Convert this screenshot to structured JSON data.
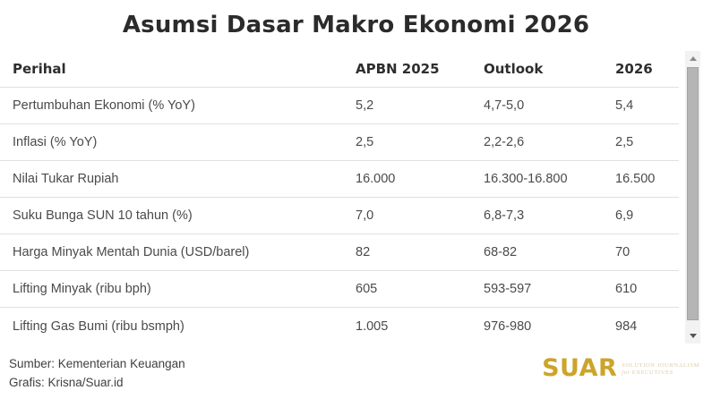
{
  "title": "Asumsi Dasar Makro Ekonomi 2026",
  "table": {
    "columns": [
      "Perihal",
      "APBN 2025",
      "Outlook",
      "2026"
    ],
    "rows": [
      [
        "Pertumbuhan Ekonomi (% YoY)",
        "5,2",
        "4,7-5,0",
        "5,4"
      ],
      [
        "Inflasi (% YoY)",
        "2,5",
        "2,2-2,6",
        "2,5"
      ],
      [
        "Nilai Tukar Rupiah",
        "16.000",
        "16.300-16.800",
        "16.500"
      ],
      [
        "Suku Bunga SUN 10 tahun (%)",
        "7,0",
        "6,8-7,3",
        "6,9"
      ],
      [
        "Harga Minyak Mentah Dunia (USD/barel)",
        "82",
        "68-82",
        "70"
      ],
      [
        "Lifting Minyak (ribu bph)",
        "605",
        "593-597",
        "610"
      ],
      [
        "Lifting Gas Bumi (ribu bsmph)",
        "1.005",
        "976-980",
        "984"
      ]
    ]
  },
  "footer": {
    "source": "Sumber: Kementerian Keuangan",
    "credit": "Grafis: Krisna/Suar.id"
  },
  "logo": {
    "name": "SUAR",
    "tagline_line1": "SOLUTION JOURNALISM",
    "tagline_line2_italic": "for",
    "tagline_line2_rest": "EXECUTIVES",
    "brand_color": "#CDA42B",
    "tagline_color": "#DBCDA5"
  }
}
